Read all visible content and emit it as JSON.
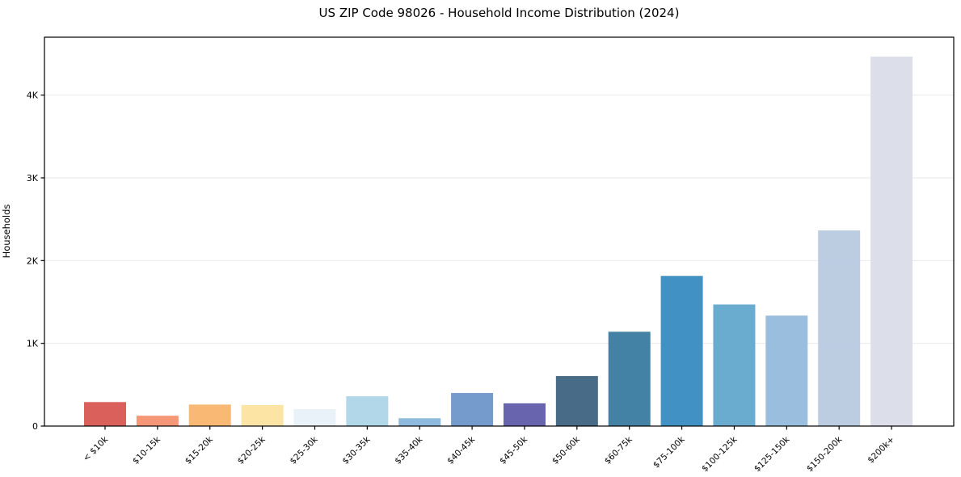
{
  "chart_data": {
    "type": "bar",
    "title": "US ZIP Code 98026 - Household Income Distribution (2024)",
    "xlabel": "",
    "ylabel": "Households",
    "categories": [
      "< $10k",
      "$10-15k",
      "$15-20k",
      "$20-25k",
      "$25-30k",
      "$30-35k",
      "$35-40k",
      "$40-45k",
      "$45-50k",
      "$50-60k",
      "$60-75k",
      "$75-100k",
      "$100-125k",
      "$125-150k",
      "$150-200k",
      "$200k+"
    ],
    "values": [
      290,
      125,
      260,
      255,
      205,
      360,
      95,
      400,
      275,
      605,
      1140,
      1815,
      1470,
      1335,
      2365,
      4465
    ],
    "bar_colors": [
      "#d6544f",
      "#f48e6c",
      "#f9b469",
      "#fce39d",
      "#e7f1f8",
      "#abd4e7",
      "#85b6da",
      "#6b93c8",
      "#5c59a8",
      "#3a607e",
      "#36789e",
      "#3489bf",
      "#5fa5cc",
      "#92badb",
      "#b7c9e0",
      "#d9dbe8"
    ],
    "ylim": [
      0,
      4700
    ],
    "yticks": {
      "values": [
        0,
        1000,
        2000,
        3000,
        4000
      ],
      "labels": [
        "0",
        "1K",
        "2K",
        "3K",
        "4K"
      ]
    },
    "x_tick_rotation_deg": 45,
    "grid": true,
    "grid_color": "#e9e9ef",
    "frame_color": "#000000",
    "legend": null
  }
}
